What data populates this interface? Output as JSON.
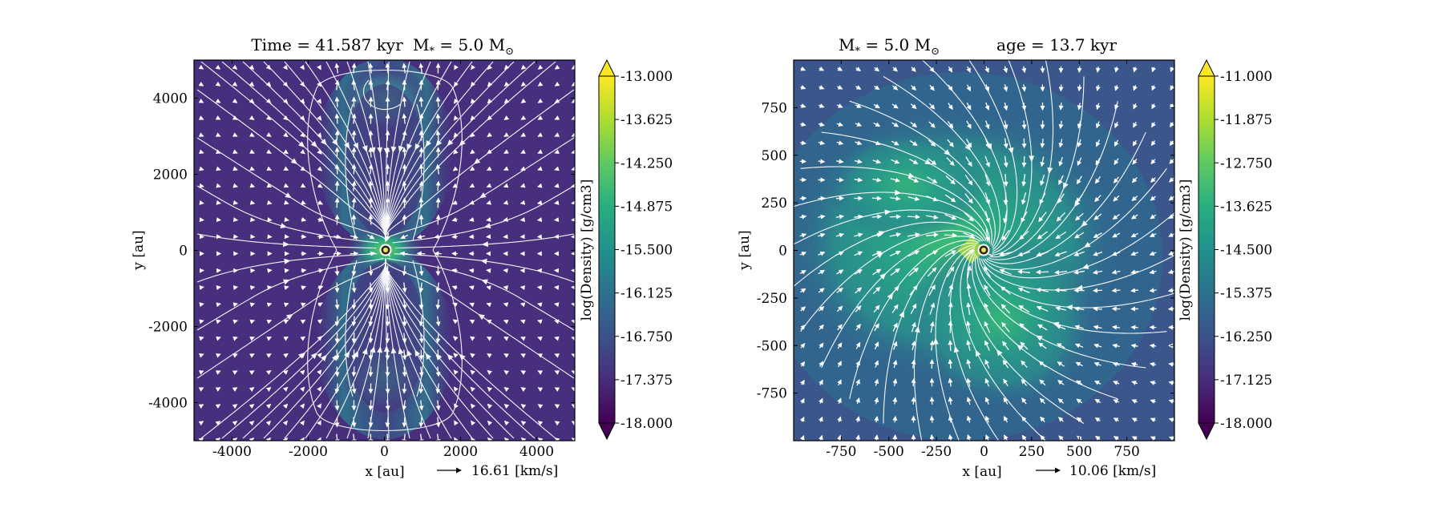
{
  "chart_data": [
    {
      "type": "heatmap",
      "title_left": "Time = 41.587 kyr",
      "title_right": "M",
      "title_right_sub": "*",
      "title_right_rest": " = 5.0 M",
      "title_right_sun": "⊙",
      "xlabel": "x [au]",
      "ylabel": "y [au]",
      "xlim": [
        -5000,
        5000
      ],
      "ylim": [
        -5000,
        5000
      ],
      "xticks": [
        -4000,
        -2000,
        0,
        2000,
        4000
      ],
      "yticks": [
        -4000,
        -2000,
        0,
        2000,
        4000
      ],
      "colorbar": {
        "label": "log(Density) [g/cm3]",
        "range": [
          -18.0,
          -13.0
        ],
        "ticks": [
          "-13.000",
          "-13.625",
          "-14.250",
          "-14.875",
          "-15.500",
          "-16.125",
          "-16.750",
          "-17.375",
          "-18.000"
        ],
        "extend": "both"
      },
      "vector_key": {
        "label": "16.61 [km/s]",
        "value": 16.61
      },
      "features": [
        "bipolar-outflow-cavity",
        "streamlines",
        "velocity-arrows",
        "central-star"
      ]
    },
    {
      "type": "heatmap",
      "title_left": "M",
      "title_left_sub": "*",
      "title_left_rest": " = 5.0 M",
      "title_left_sun": "⊙",
      "title_right": "age = 13.7 kyr",
      "xlabel": "x [au]",
      "ylabel": "y [au]",
      "xlim": [
        -1000,
        1000
      ],
      "ylim": [
        -1000,
        1000
      ],
      "xticks": [
        -750,
        -500,
        -250,
        0,
        250,
        500,
        750
      ],
      "yticks": [
        -750,
        -500,
        -250,
        0,
        250,
        500,
        750
      ],
      "colorbar": {
        "label": "log(Density) [g/cm3]",
        "range": [
          -18.0,
          -11.0
        ],
        "ticks": [
          "-11.000",
          "-11.875",
          "-12.750",
          "-13.625",
          "-14.500",
          "-15.375",
          "-16.250",
          "-17.125",
          "-18.000"
        ],
        "extend": "both"
      },
      "vector_key": {
        "label": "10.06 [km/s]",
        "value": 10.06
      },
      "features": [
        "spiral-accretion-streamlines",
        "velocity-arrows",
        "central-star"
      ]
    }
  ]
}
